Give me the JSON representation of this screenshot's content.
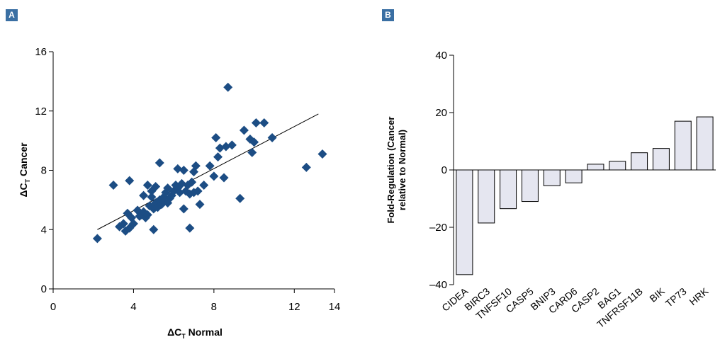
{
  "panel_a": {
    "label": "A",
    "label_color": "#3a6fa3",
    "marker_color": "#1c4d84",
    "chart_data": {
      "type": "scatter",
      "xlabel_main": "ΔC",
      "xlabel_sub": "T",
      "xlabel_rest": " Normal",
      "ylabel_main": "ΔC",
      "ylabel_sub": "T",
      "ylabel_rest": " Cancer",
      "xlim": [
        0,
        14
      ],
      "ylim": [
        0,
        16
      ],
      "xticks": [
        0,
        4,
        8,
        12,
        14
      ],
      "yticks": [
        0,
        4,
        8,
        12,
        16
      ],
      "trendline": [
        [
          2.2,
          4.0
        ],
        [
          13.2,
          11.8
        ]
      ],
      "points": [
        [
          2.2,
          3.4
        ],
        [
          3.0,
          7.0
        ],
        [
          3.3,
          4.2
        ],
        [
          3.5,
          4.4
        ],
        [
          3.6,
          3.9
        ],
        [
          3.7,
          5.1
        ],
        [
          3.8,
          7.3
        ],
        [
          3.8,
          4.1
        ],
        [
          3.9,
          4.8
        ],
        [
          4.0,
          4.4
        ],
        [
          4.2,
          5.3
        ],
        [
          4.3,
          4.9
        ],
        [
          4.4,
          5.0
        ],
        [
          4.5,
          5.2
        ],
        [
          4.5,
          6.3
        ],
        [
          4.6,
          4.8
        ],
        [
          4.7,
          5.0
        ],
        [
          4.7,
          7.0
        ],
        [
          4.8,
          5.6
        ],
        [
          4.9,
          6.2
        ],
        [
          4.9,
          6.6
        ],
        [
          5.0,
          4.0
        ],
        [
          5.0,
          5.4
        ],
        [
          5.1,
          5.8
        ],
        [
          5.1,
          6.9
        ],
        [
          5.2,
          5.5
        ],
        [
          5.3,
          8.5
        ],
        [
          5.3,
          6.0
        ],
        [
          5.4,
          5.7
        ],
        [
          5.5,
          6.2
        ],
        [
          5.5,
          5.9
        ],
        [
          5.6,
          6.5
        ],
        [
          5.7,
          6.8
        ],
        [
          5.7,
          5.8
        ],
        [
          5.8,
          6.1
        ],
        [
          5.9,
          6.3
        ],
        [
          6.0,
          6.6
        ],
        [
          6.1,
          7.0
        ],
        [
          6.2,
          8.1
        ],
        [
          6.2,
          6.8
        ],
        [
          6.3,
          6.5
        ],
        [
          6.4,
          7.1
        ],
        [
          6.5,
          5.4
        ],
        [
          6.5,
          8.0
        ],
        [
          6.6,
          6.6
        ],
        [
          6.7,
          7.0
        ],
        [
          6.8,
          4.1
        ],
        [
          6.8,
          6.4
        ],
        [
          6.9,
          7.2
        ],
        [
          7.0,
          7.9
        ],
        [
          7.0,
          6.5
        ],
        [
          7.1,
          8.3
        ],
        [
          7.2,
          6.6
        ],
        [
          7.3,
          5.7
        ],
        [
          7.5,
          7.0
        ],
        [
          7.8,
          8.3
        ],
        [
          8.0,
          7.6
        ],
        [
          8.1,
          10.2
        ],
        [
          8.2,
          8.9
        ],
        [
          8.3,
          9.5
        ],
        [
          8.5,
          7.5
        ],
        [
          8.6,
          9.6
        ],
        [
          8.7,
          13.6
        ],
        [
          8.9,
          9.7
        ],
        [
          9.3,
          6.1
        ],
        [
          9.5,
          10.7
        ],
        [
          9.8,
          10.1
        ],
        [
          9.9,
          9.2
        ],
        [
          10.0,
          9.9
        ],
        [
          10.1,
          11.2
        ],
        [
          10.5,
          11.2
        ],
        [
          10.9,
          10.2
        ],
        [
          12.6,
          8.2
        ],
        [
          13.4,
          9.1
        ]
      ]
    }
  },
  "panel_b": {
    "label": "B",
    "label_color": "#3a6fa3",
    "bar_fill": "#e5e6f0",
    "chart_data": {
      "type": "bar",
      "ylabel_line1": "Fold-Regulation (Cancer",
      "ylabel_line2": "relative to Normal)",
      "ylim": [
        -40,
        40
      ],
      "yticks": [
        40,
        20,
        0,
        -20,
        -40
      ],
      "ytick_labels": [
        "40",
        "20",
        "0",
        "–20",
        "–40"
      ],
      "categories": [
        "CIDEA",
        "BIRC3",
        "TNFSF10",
        "CASP5",
        "BNIP3",
        "CARD6",
        "CASP2",
        "BAG1",
        "TNFRSF11B",
        "BIK",
        "TP73",
        "HRK"
      ],
      "values": [
        -36.5,
        -18.5,
        -13.5,
        -11.0,
        -5.5,
        -4.5,
        2.0,
        3.0,
        6.0,
        7.5,
        17.0,
        18.5
      ]
    }
  }
}
